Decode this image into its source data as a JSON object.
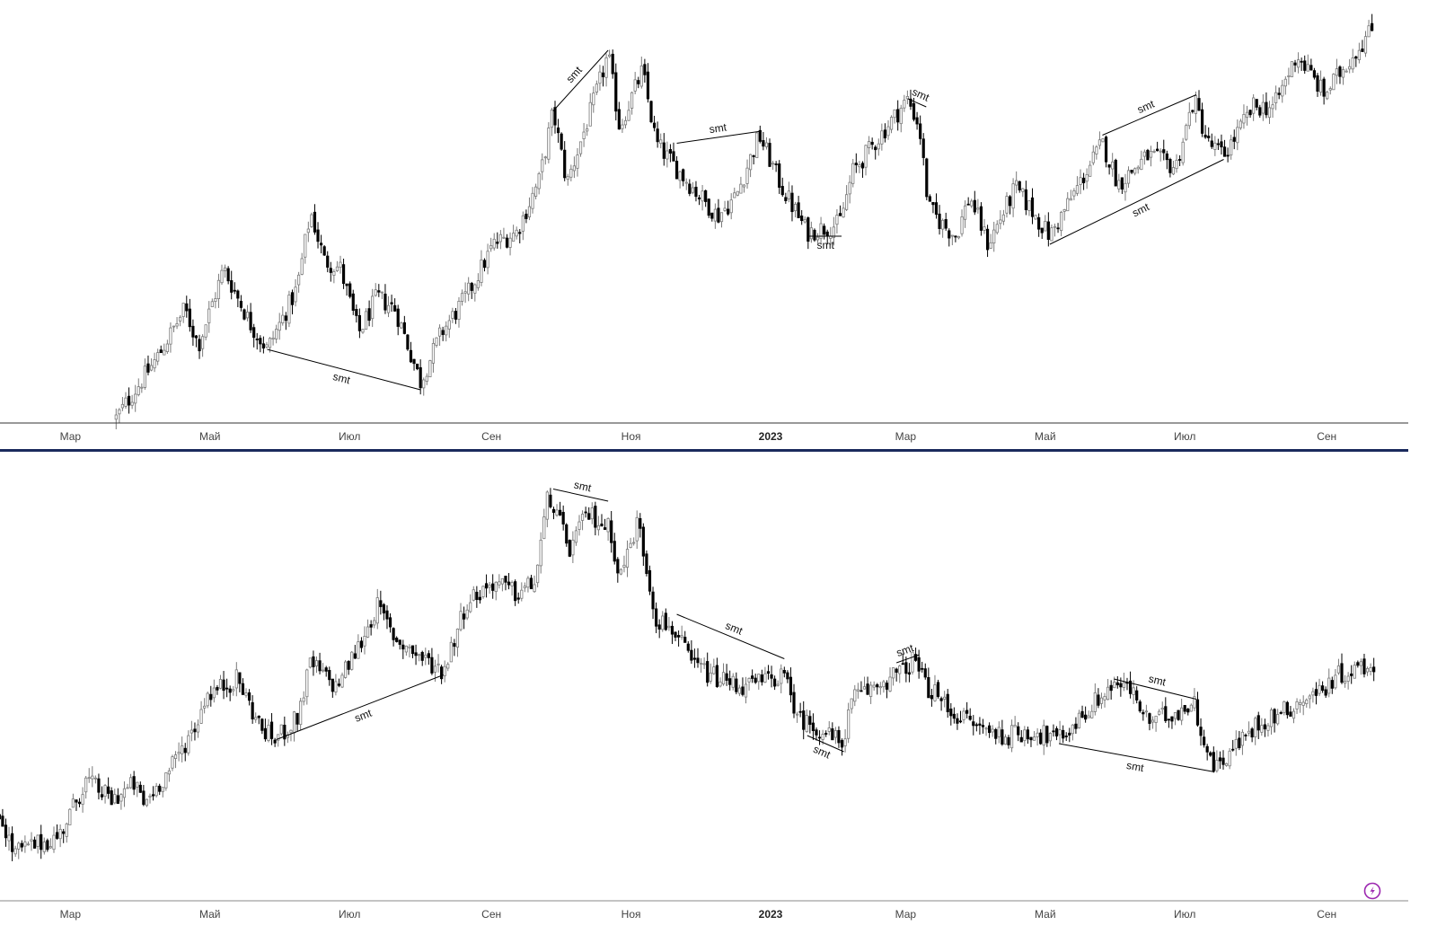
{
  "chart_data": [
    {
      "type": "candlestick",
      "title": "",
      "xlabel": "",
      "ylabel": "",
      "x_unit": "days since 2022-01-01",
      "price_unit": "relative index",
      "ylim": [
        0,
        100
      ],
      "grid": false,
      "anchors": [
        [
          79,
          1
        ],
        [
          97,
          16
        ],
        [
          109,
          28
        ],
        [
          115,
          19
        ],
        [
          126,
          38
        ],
        [
          138,
          24
        ],
        [
          145,
          18
        ],
        [
          158,
          33
        ],
        [
          164,
          52
        ],
        [
          170,
          40
        ],
        [
          177,
          38
        ],
        [
          185,
          22
        ],
        [
          193,
          31
        ],
        [
          201,
          28
        ],
        [
          212,
          10
        ],
        [
          221,
          22
        ],
        [
          232,
          31
        ],
        [
          244,
          44
        ],
        [
          254,
          47
        ],
        [
          264,
          60
        ],
        [
          270,
          77
        ],
        [
          276,
          59
        ],
        [
          287,
          78
        ],
        [
          294,
          91
        ],
        [
          299,
          73
        ],
        [
          309,
          87
        ],
        [
          315,
          69
        ],
        [
          325,
          62
        ],
        [
          334,
          56
        ],
        [
          342,
          51
        ],
        [
          350,
          56
        ],
        [
          360,
          71
        ],
        [
          370,
          58
        ],
        [
          381,
          47
        ],
        [
          395,
          49
        ],
        [
          401,
          62
        ],
        [
          413,
          71
        ],
        [
          425,
          80
        ],
        [
          430,
          73
        ],
        [
          434,
          53
        ],
        [
          440,
          49
        ],
        [
          446,
          46
        ],
        [
          452,
          56
        ],
        [
          460,
          44
        ],
        [
          472,
          58
        ],
        [
          487,
          46
        ],
        [
          499,
          58
        ],
        [
          510,
          69
        ],
        [
          517,
          59
        ],
        [
          530,
          66
        ],
        [
          542,
          63
        ],
        [
          550,
          80
        ],
        [
          556,
          69
        ],
        [
          563,
          66
        ],
        [
          576,
          78
        ],
        [
          585,
          78
        ],
        [
          595,
          91
        ],
        [
          607,
          81
        ],
        [
          617,
          89
        ],
        [
          629,
          98
        ]
      ],
      "annotations": [
        {
          "label": "smt",
          "from": [
            145,
            18
          ],
          "to": [
            212,
            8
          ],
          "side": "below"
        },
        {
          "label": "smt",
          "from": [
            270,
            77
          ],
          "to": [
            294,
            92
          ],
          "side": "above"
        },
        {
          "label": "smt",
          "from": [
            324,
            69
          ],
          "to": [
            361,
            72
          ],
          "side": "above"
        },
        {
          "label": "smt",
          "from": [
            382,
            46
          ],
          "to": [
            396,
            46
          ],
          "side": "below"
        },
        {
          "label": "smt",
          "from": [
            425,
            80
          ],
          "to": [
            433,
            78
          ],
          "side": "above"
        },
        {
          "label": "smt",
          "from": [
            510,
            71
          ],
          "to": [
            551,
            81
          ],
          "side": "above"
        },
        {
          "label": "smt",
          "from": [
            487,
            44
          ],
          "to": [
            563,
            65
          ],
          "side": "below"
        }
      ],
      "x_ticks": [
        {
          "day": 59,
          "label": "Мар"
        },
        {
          "day": 120,
          "label": "Май"
        },
        {
          "day": 181,
          "label": "Июл"
        },
        {
          "day": 243,
          "label": "Сен"
        },
        {
          "day": 304,
          "label": "Ноя"
        },
        {
          "day": 365,
          "label": "2023",
          "bold": true
        },
        {
          "day": 424,
          "label": "Мар"
        },
        {
          "day": 485,
          "label": "Май"
        },
        {
          "day": 546,
          "label": "Июл"
        },
        {
          "day": 608,
          "label": "Сен"
        }
      ]
    },
    {
      "type": "candlestick",
      "title": "",
      "xlabel": "",
      "ylabel": "",
      "x_unit": "days since 2022-01-01",
      "price_unit": "relative index",
      "ylim": [
        0,
        100
      ],
      "grid": false,
      "anchors": [
        [
          28,
          19
        ],
        [
          34,
          9
        ],
        [
          44,
          11
        ],
        [
          54,
          13
        ],
        [
          66,
          27
        ],
        [
          77,
          22
        ],
        [
          87,
          26
        ],
        [
          91,
          21
        ],
        [
          103,
          30
        ],
        [
          115,
          42
        ],
        [
          118,
          48
        ],
        [
          132,
          52
        ],
        [
          142,
          40
        ],
        [
          148,
          37
        ],
        [
          158,
          42
        ],
        [
          164,
          56
        ],
        [
          175,
          50
        ],
        [
          185,
          60
        ],
        [
          193,
          70
        ],
        [
          201,
          62
        ],
        [
          213,
          57
        ],
        [
          222,
          54
        ],
        [
          232,
          71
        ],
        [
          244,
          76
        ],
        [
          254,
          73
        ],
        [
          262,
          76
        ],
        [
          268,
          98
        ],
        [
          277,
          84
        ],
        [
          285,
          93
        ],
        [
          295,
          89
        ],
        [
          299,
          77
        ],
        [
          307,
          91
        ],
        [
          315,
          67
        ],
        [
          323,
          64
        ],
        [
          330,
          56
        ],
        [
          342,
          52
        ],
        [
          354,
          50
        ],
        [
          370,
          53
        ],
        [
          378,
          42
        ],
        [
          385,
          40
        ],
        [
          396,
          36
        ],
        [
          401,
          47
        ],
        [
          413,
          51
        ],
        [
          423,
          54
        ],
        [
          428,
          57
        ],
        [
          432,
          51
        ],
        [
          444,
          44
        ],
        [
          456,
          40
        ],
        [
          468,
          38
        ],
        [
          479,
          39
        ],
        [
          491,
          37
        ],
        [
          503,
          44
        ],
        [
          515,
          51
        ],
        [
          523,
          49
        ],
        [
          530,
          41
        ],
        [
          542,
          44
        ],
        [
          550,
          46
        ],
        [
          558,
          30
        ],
        [
          566,
          34
        ],
        [
          578,
          41
        ],
        [
          589,
          44
        ],
        [
          605,
          49
        ],
        [
          613,
          53
        ],
        [
          629,
          56
        ]
      ],
      "annotations": [
        {
          "label": "smt",
          "from": [
            270,
            99
          ],
          "to": [
            294,
            96
          ],
          "side": "above"
        },
        {
          "label": "smt",
          "from": [
            149,
            37
          ],
          "to": [
            222,
            53
          ],
          "side": "below"
        },
        {
          "label": "smt",
          "from": [
            324,
            68
          ],
          "to": [
            371,
            57
          ],
          "side": "above"
        },
        {
          "label": "smt",
          "from": [
            381,
            38
          ],
          "to": [
            397,
            34
          ],
          "side": "below"
        },
        {
          "label": "smt",
          "from": [
            420,
            56
          ],
          "to": [
            430,
            58
          ],
          "side": "above"
        },
        {
          "label": "smt",
          "from": [
            515,
            52
          ],
          "to": [
            551,
            47
          ],
          "side": "above"
        },
        {
          "label": "smt",
          "from": [
            491,
            36
          ],
          "to": [
            559,
            29
          ],
          "side": "below"
        }
      ],
      "x_ticks": [
        {
          "day": 59,
          "label": "Мар"
        },
        {
          "day": 120,
          "label": "Май"
        },
        {
          "day": 181,
          "label": "Июл"
        },
        {
          "day": 243,
          "label": "Сен"
        },
        {
          "day": 304,
          "label": "Ноя"
        },
        {
          "day": 365,
          "label": "2023",
          "bold": true
        },
        {
          "day": 424,
          "label": "Мар"
        },
        {
          "day": 485,
          "label": "Май"
        },
        {
          "day": 546,
          "label": "Июл"
        },
        {
          "day": 608,
          "label": "Сен"
        }
      ]
    }
  ],
  "colors": {
    "up_fill": "#ffffff",
    "up_stroke": "#7a7a7a",
    "down": "#000000",
    "separator": "#1a2a5c",
    "icon": "#9c27b0"
  },
  "icons": {
    "corner": "lightning-icon"
  }
}
